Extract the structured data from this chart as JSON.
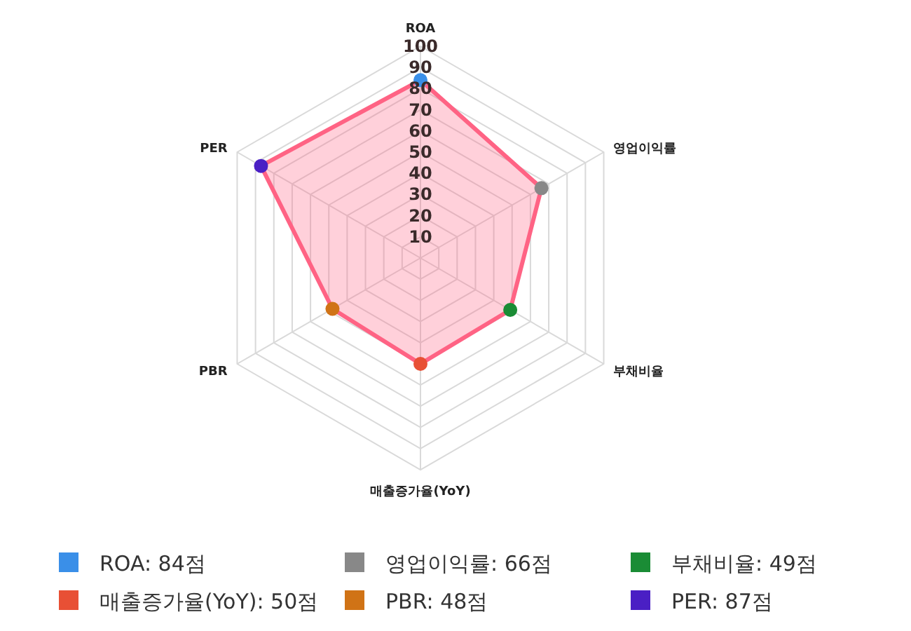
{
  "chart_data": {
    "type": "radar",
    "categories": [
      "ROA",
      "영업이익률",
      "부채비율",
      "매출증가율(YoY)",
      "PBR",
      "PER"
    ],
    "series": [
      {
        "color": "#ff6384",
        "values": [
          84,
          66,
          49,
          50,
          48,
          87
        ],
        "colors": [
          "#3a8fe8",
          "#888888",
          "#1a8c35",
          "#e85035",
          "#d07316",
          "#4a1fc4"
        ]
      }
    ],
    "annotations": [
      "ROA: 84점",
      "영업이익률: 66점",
      "부채비율: 49점",
      "매출증가율(YoY): 50점",
      "PBR: 48점",
      "PER: 87점"
    ],
    "ylim": [
      0,
      100
    ],
    "yticks": [
      10,
      20,
      30,
      40,
      50,
      60,
      70,
      80,
      90,
      100
    ],
    "grid": true,
    "marker": "circle"
  }
}
